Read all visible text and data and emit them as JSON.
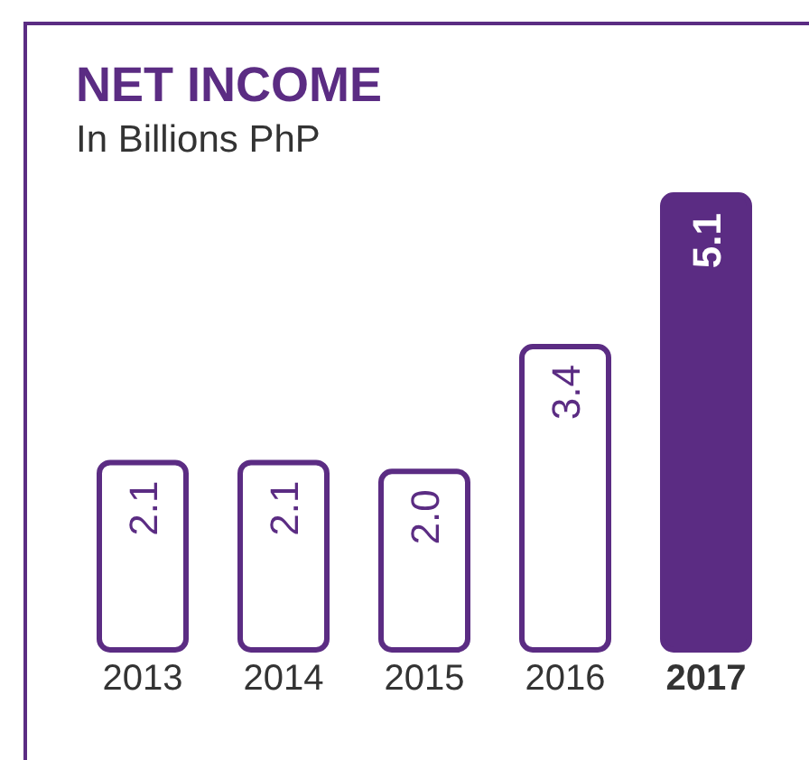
{
  "chart_data": {
    "type": "bar",
    "title": "NET INCOME",
    "subtitle": "In Billions PhP",
    "categories": [
      "2013",
      "2014",
      "2015",
      "2016",
      "2017"
    ],
    "values": [
      2.1,
      2.1,
      2.0,
      3.4,
      5.1
    ],
    "color": "#5b2c83",
    "colors": [
      "#ffffff",
      "#ffffff",
      "#ffffff",
      "#ffffff",
      "#5b2c83"
    ],
    "value_labels": [
      "2.1",
      "2.1",
      "2.0",
      "3.4",
      "5.1"
    ],
    "grid": false,
    "legend": false
  }
}
